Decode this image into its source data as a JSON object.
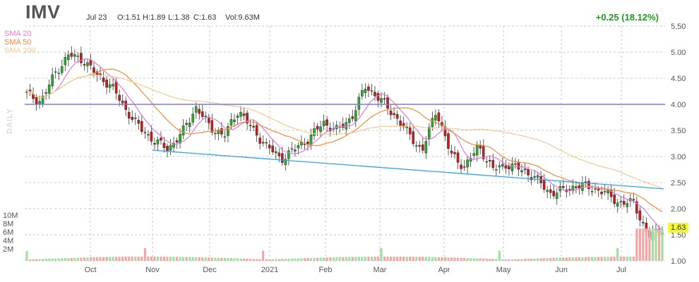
{
  "header": {
    "ticker": "IMV",
    "date": "Jul 23",
    "open": "O:1.51",
    "high": "H:1.89",
    "low": "L:1.38",
    "close": "C:1.63",
    "volume": "Vol:9.63M",
    "change": "+0.25 (18.12%)"
  },
  "side_label": "DAILY",
  "last_price_tag": "1.63",
  "colors": {
    "up": "#2ea82e",
    "down": "#c0201f",
    "sma20": "#e07ad6",
    "sma50": "#f08a3c",
    "sma200": "#f5c98f",
    "hline": "#7b7bd0",
    "trendline": "#2aa6e0",
    "grid": "#c8c8c8",
    "vol_up": "#9fe09f",
    "vol_down": "#f2a7a7"
  },
  "chart_data": {
    "type": "candlestick",
    "legend": [
      "SMA 20",
      "SMA 50",
      "SMA 200"
    ],
    "legend_placement": "top-left",
    "x_labels": [
      "Oct",
      "Nov",
      "Dec",
      "2021",
      "Feb",
      "Mar",
      "Apr",
      "May",
      "Jun",
      "Jul"
    ],
    "y_ticks": [
      "5.50",
      "5.00",
      "4.50",
      "4.00",
      "3.50",
      "3.00",
      "2.50",
      "2.00",
      "1.50",
      "1.00"
    ],
    "ylim": [
      1.0,
      5.5
    ],
    "volume_ticks": [
      "10M",
      "8M",
      "6M",
      "4M",
      "2M"
    ],
    "horizontal_line": 4.0,
    "trendline": {
      "start": [
        "Nov",
        3.12
      ],
      "end": [
        "Jul 23",
        2.38
      ]
    },
    "close_path": [
      {
        "d": "Sep",
        "v": 4.2
      },
      {
        "d": "Sep",
        "v": 4.05
      },
      {
        "d": "Sep",
        "v": 4.6
      },
      {
        "d": "Sep",
        "v": 4.95
      },
      {
        "d": "Sep",
        "v": 4.85
      },
      {
        "d": "Sep",
        "v": 4.55
      },
      {
        "d": "Oct",
        "v": 4.35
      },
      {
        "d": "Oct",
        "v": 3.9
      },
      {
        "d": "Oct",
        "v": 3.55
      },
      {
        "d": "Oct",
        "v": 3.3
      },
      {
        "d": "Nov",
        "v": 3.15
      },
      {
        "d": "Nov",
        "v": 3.45
      },
      {
        "d": "Nov",
        "v": 3.95
      },
      {
        "d": "Nov",
        "v": 3.55
      },
      {
        "d": "Dec",
        "v": 3.4
      },
      {
        "d": "Dec",
        "v": 3.9
      },
      {
        "d": "Dec",
        "v": 3.5
      },
      {
        "d": "Dec",
        "v": 3.2
      },
      {
        "d": "Dec",
        "v": 2.95
      },
      {
        "d": "2021",
        "v": 3.15
      },
      {
        "d": "Jan",
        "v": 3.35
      },
      {
        "d": "Jan",
        "v": 3.65
      },
      {
        "d": "Jan",
        "v": 3.5
      },
      {
        "d": "Feb",
        "v": 3.75
      },
      {
        "d": "Feb",
        "v": 4.35
      },
      {
        "d": "Feb",
        "v": 4.1
      },
      {
        "d": "Feb",
        "v": 3.8
      },
      {
        "d": "Mar",
        "v": 3.45
      },
      {
        "d": "Mar",
        "v": 3.1
      },
      {
        "d": "Mar",
        "v": 3.9
      },
      {
        "d": "Mar",
        "v": 3.05
      },
      {
        "d": "Apr",
        "v": 2.8
      },
      {
        "d": "Apr",
        "v": 3.2
      },
      {
        "d": "Apr",
        "v": 2.75
      },
      {
        "d": "Apr",
        "v": 2.85
      },
      {
        "d": "May",
        "v": 2.75
      },
      {
        "d": "May",
        "v": 2.6
      },
      {
        "d": "May",
        "v": 2.3
      },
      {
        "d": "May",
        "v": 2.35
      },
      {
        "d": "Jun",
        "v": 2.45
      },
      {
        "d": "Jun",
        "v": 2.4
      },
      {
        "d": "Jun",
        "v": 2.3
      },
      {
        "d": "Jul",
        "v": 2.1
      },
      {
        "d": "Jul",
        "v": 2.12
      },
      {
        "d": "Jul",
        "v": 1.45
      },
      {
        "d": "Jul 23",
        "v": 1.63
      }
    ]
  }
}
